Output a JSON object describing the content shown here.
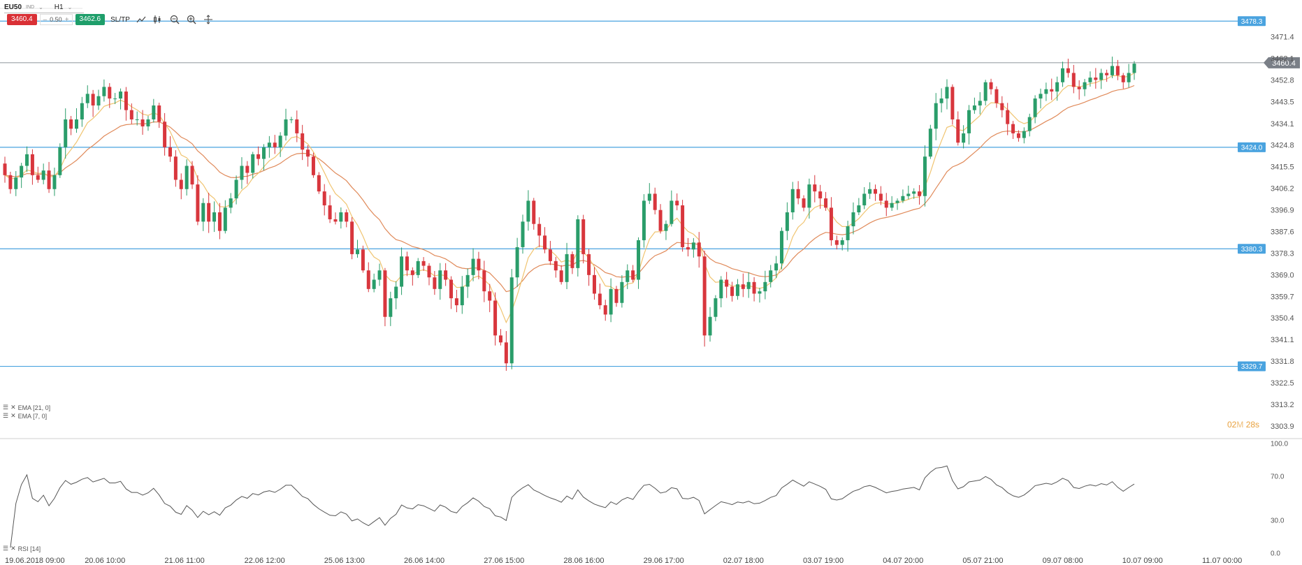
{
  "toolbar": {
    "symbol": "EU50",
    "symbol_type": "IND",
    "timeframe": "H1",
    "sell_price": "3460.4",
    "volume": "0.50",
    "buy_price": "3462.6",
    "sltp_label": "SL/TP",
    "minus": "–",
    "plus": "+"
  },
  "indicators": {
    "ema1": "EMA [21, 0]",
    "ema2": "EMA [7, 0]",
    "rsi": "RSI [14]"
  },
  "countdown": {
    "minutes": "02",
    "m": "M",
    "seconds": "28s"
  },
  "colors": {
    "bull": "#2a9d6a",
    "bear": "#d8363d",
    "ema21": "#e08a5a",
    "ema7": "#f0c470",
    "hline": "#4aa3df",
    "price_badge": "#7a7f87",
    "rsi_line": "#555555"
  },
  "icons": [
    "line-chart-icon",
    "candle-type-icon",
    "zoom-out-icon",
    "zoom-in-icon",
    "crosshair-icon",
    "drag-handle-icon"
  ],
  "chart_data": {
    "type": "candlestick",
    "ylim": [
      3298,
      3485
    ],
    "price_ticks": [
      "3471.4",
      "3462.1",
      "3452.8",
      "3443.5",
      "3434.1",
      "3424.8",
      "3415.5",
      "3406.2",
      "3396.9",
      "3387.6",
      "3378.3",
      "3369.0",
      "3359.7",
      "3350.4",
      "3341.1",
      "3331.8",
      "3322.5",
      "3313.2",
      "3303.9"
    ],
    "time_labels": [
      "19.06.2018 09:00",
      "20.06 10:00",
      "21.06 11:00",
      "22.06 12:00",
      "25.06 13:00",
      "26.06 14:00",
      "27.06 15:00",
      "28.06 16:00",
      "29.06 17:00",
      "02.07 18:00",
      "03.07 19:00",
      "04.07 20:00",
      "05.07 21:00",
      "09.07 08:00",
      "10.07 09:00",
      "11.07 00:00"
    ],
    "horizontal_lines": [
      {
        "label": "3478.3",
        "value": 3478.3
      },
      {
        "label": "3424.0",
        "value": 3424.0
      },
      {
        "label": "3380.3",
        "value": 3380.3
      },
      {
        "label": "3329.7",
        "value": 3329.7
      }
    ],
    "current_price": {
      "label": "3460.4",
      "value": 3460.4
    },
    "rsi_ticks": [
      "100.0",
      "70.0",
      "30.0",
      "0.0"
    ],
    "closes": [
      3412,
      3406,
      3411,
      3416,
      3421,
      3412,
      3410,
      3414,
      3406,
      3412,
      3424,
      3436,
      3432,
      3436,
      3443,
      3447,
      3442,
      3446,
      3450,
      3445,
      3445,
      3448,
      3440,
      3436,
      3436,
      3433,
      3436,
      3442,
      3435,
      3424,
      3420,
      3410,
      3406,
      3416,
      3408,
      3392,
      3400,
      3392,
      3396,
      3388,
      3398,
      3402,
      3410,
      3416,
      3413,
      3421,
      3419,
      3424,
      3426,
      3424,
      3429,
      3436,
      3436,
      3430,
      3423,
      3420,
      3412,
      3405,
      3399,
      3393,
      3392,
      3396,
      3392,
      3378,
      3380,
      3371,
      3363,
      3367,
      3371,
      3351,
      3359,
      3364,
      3377,
      3371,
      3369,
      3375,
      3373,
      3368,
      3363,
      3371,
      3367,
      3359,
      3356,
      3364,
      3369,
      3376,
      3371,
      3362,
      3358,
      3343,
      3340,
      3331,
      3368,
      3381,
      3392,
      3401,
      3391,
      3386,
      3380,
      3375,
      3371,
      3366,
      3378,
      3372,
      3393,
      3378,
      3369,
      3361,
      3356,
      3352,
      3363,
      3357,
      3366,
      3371,
      3367,
      3384,
      3401,
      3404,
      3397,
      3388,
      3391,
      3401,
      3399,
      3381,
      3380,
      3383,
      3377,
      3343,
      3351,
      3359,
      3367,
      3364,
      3360,
      3365,
      3363,
      3366,
      3361,
      3362,
      3366,
      3371,
      3374,
      3388,
      3396,
      3406,
      3402,
      3398,
      3408,
      3405,
      3402,
      3398,
      3384,
      3382,
      3384,
      3390,
      3396,
      3399,
      3404,
      3406,
      3404,
      3401,
      3398,
      3400,
      3401,
      3403,
      3404,
      3405,
      3403,
      3420,
      3432,
      3443,
      3445,
      3450,
      3436,
      3426,
      3430,
      3440,
      3442,
      3444,
      3452,
      3449,
      3443,
      3440,
      3434,
      3430,
      3428,
      3431,
      3437,
      3445,
      3447,
      3449,
      3448,
      3452,
      3458,
      3456,
      3450,
      3449,
      3452,
      3454,
      3453,
      3456,
      3455,
      3459,
      3455,
      3452,
      3456,
      3460
    ]
  }
}
